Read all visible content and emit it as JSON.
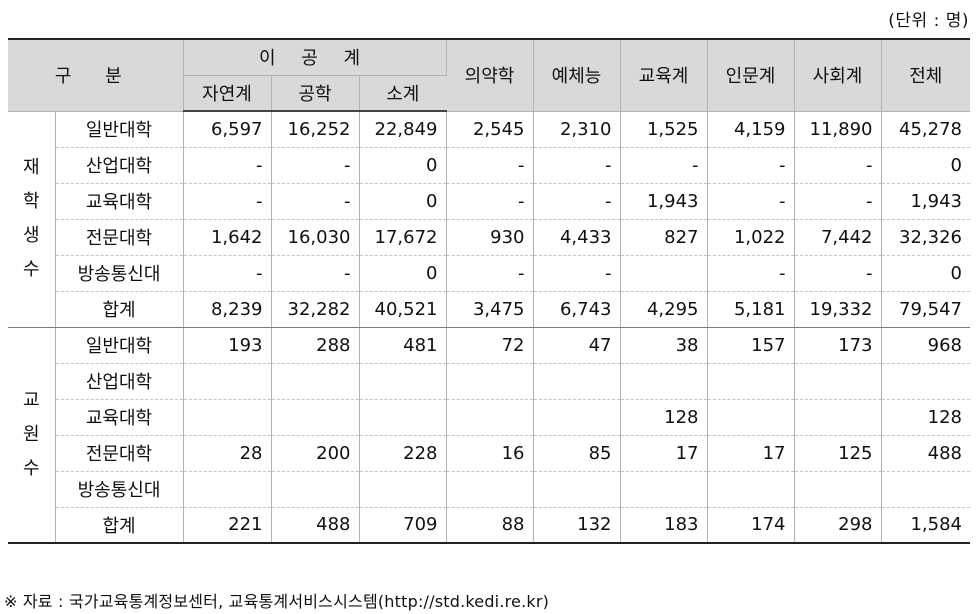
{
  "unit_label": "(단위 : 명)",
  "header": {
    "gubun": "구 분",
    "igong": "이 공 계",
    "sub": [
      "자연계",
      "공학",
      "소계"
    ],
    "cols": [
      "의약학",
      "예체능",
      "교육계",
      "인문계",
      "사회계",
      "전체"
    ]
  },
  "groups": [
    {
      "label": [
        "재",
        "학",
        "생",
        "수"
      ],
      "rows": [
        {
          "name": "일반대학",
          "values": [
            "6,597",
            "16,252",
            "22,849",
            "2,545",
            "2,310",
            "1,525",
            "4,159",
            "11,890",
            "45,278"
          ]
        },
        {
          "name": "산업대학",
          "values": [
            "-",
            "-",
            "0",
            "-",
            "-",
            "-",
            "-",
            "-",
            "0"
          ]
        },
        {
          "name": "교육대학",
          "values": [
            "-",
            "-",
            "0",
            "-",
            "-",
            "1,943",
            "-",
            "-",
            "1,943"
          ]
        },
        {
          "name": "전문대학",
          "values": [
            "1,642",
            "16,030",
            "17,672",
            "930",
            "4,433",
            "827",
            "1,022",
            "7,442",
            "32,326"
          ]
        },
        {
          "name": "방송통신대",
          "values": [
            "-",
            "-",
            "0",
            "-",
            "-",
            "",
            "-",
            "-",
            "0"
          ]
        },
        {
          "name": "합계",
          "values": [
            "8,239",
            "32,282",
            "40,521",
            "3,475",
            "6,743",
            "4,295",
            "5,181",
            "19,332",
            "79,547"
          ]
        }
      ]
    },
    {
      "label": [
        "교",
        "원",
        "수"
      ],
      "rows": [
        {
          "name": "일반대학",
          "values": [
            "193",
            "288",
            "481",
            "72",
            "47",
            "38",
            "157",
            "173",
            "968"
          ]
        },
        {
          "name": "산업대학",
          "values": [
            "",
            "",
            "",
            "",
            "",
            "",
            "",
            "",
            ""
          ]
        },
        {
          "name": "교육대학",
          "values": [
            "",
            "",
            "",
            "",
            "",
            "128",
            "",
            "",
            "128"
          ]
        },
        {
          "name": "전문대학",
          "values": [
            "28",
            "200",
            "228",
            "16",
            "85",
            "17",
            "17",
            "125",
            "488"
          ]
        },
        {
          "name": "방송통신대",
          "values": [
            "",
            "",
            "",
            "",
            "",
            "",
            "",
            "",
            ""
          ]
        },
        {
          "name": "합계",
          "values": [
            "221",
            "488",
            "709",
            "88",
            "132",
            "183",
            "174",
            "298",
            "1,584"
          ]
        }
      ]
    }
  ],
  "source": "※  자료 : 국가교육통계정보센터, 교육통계서비스시스템(http://std.kedi.re.kr)"
}
